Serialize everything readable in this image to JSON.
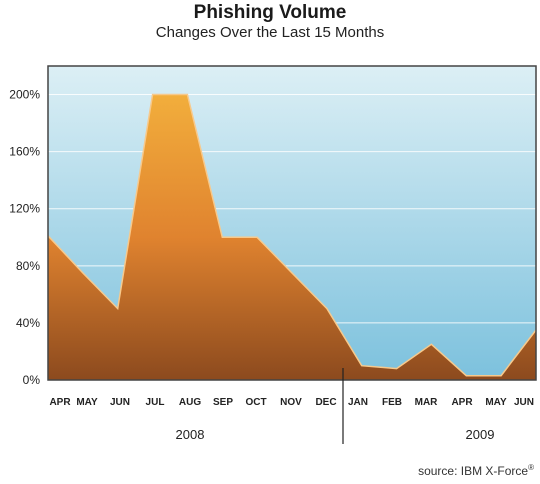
{
  "chart_data": {
    "type": "area",
    "title": "Phishing Volume",
    "subtitle": "Changes Over the Last 15 Months",
    "categories": [
      "APR",
      "MAY",
      "JUN",
      "JUL",
      "AUG",
      "SEP",
      "OCT",
      "NOV",
      "DEC",
      "JAN",
      "FEB",
      "MAR",
      "APR",
      "MAY",
      "JUN"
    ],
    "series": [
      {
        "values": [
          101,
          75,
          50,
          200,
          200,
          100,
          100,
          75,
          50,
          10,
          8,
          25,
          3,
          3,
          35
        ]
      }
    ],
    "ylim": [
      0,
      220
    ],
    "yticks": [
      0,
      40,
      80,
      120,
      160,
      200
    ],
    "ytick_labels": [
      "0%",
      "40%",
      "80%",
      "120%",
      "160%",
      "200%"
    ],
    "year_labels": [
      "2008",
      "2009"
    ],
    "grid": true,
    "colors": {
      "area_top": "#F2AE3C",
      "area_mid": "#E0832F",
      "area_bottom": "#8C4A1E",
      "bg_top": "#DCEFF5",
      "bg_bottom": "#7CC1DD"
    }
  },
  "source_label": "source: IBM X-Force",
  "source_mark": "®"
}
